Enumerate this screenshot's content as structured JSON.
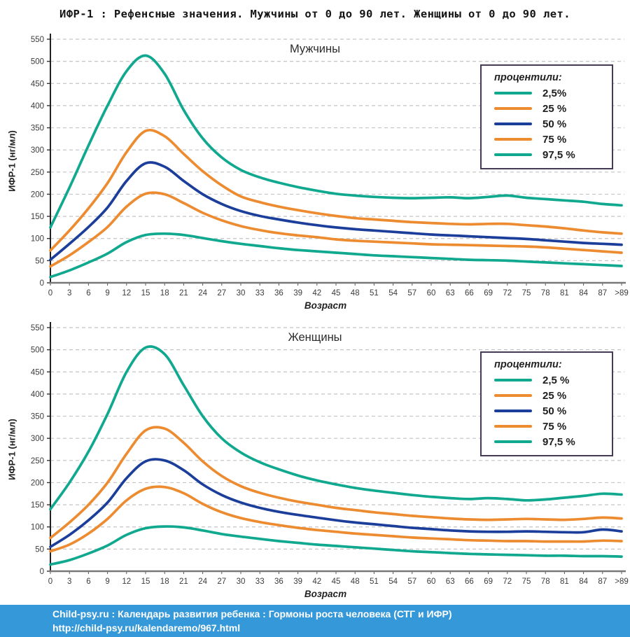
{
  "title": "ИФР-1 : Рефенсные значения. Мужчины от 0 до 90 лет. Женщины от 0 до 90 лет.",
  "footer": {
    "line1": "Child-psy.ru : Календарь развития ребенка : Гормоны роста человека (СТГ и ИФР)",
    "line2": "http://child-psy.ru/kalendaremo/967.html"
  },
  "colors": {
    "teal": "#10a88e",
    "orange": "#ec8b30",
    "blue": "#1c3e9b",
    "legend_border": "#463a54",
    "footer_bg": "#3598d8",
    "gridline": "#c4c4c4"
  },
  "axis": {
    "y_ticks": [
      0,
      50,
      100,
      150,
      200,
      250,
      300,
      350,
      400,
      450,
      500,
      550
    ]
  },
  "chart_data": [
    {
      "type": "line",
      "title": "Мужчины",
      "legend_title": "процентили:",
      "legend_position": "top-right",
      "grid": "horizontal-dashed",
      "xlabel": "Возраст",
      "ylabel": "ИФР-1 (нг/мл)",
      "ylim": [
        0,
        550
      ],
      "x": [
        "0",
        "3",
        "6",
        "9",
        "12",
        "15",
        "18",
        "21",
        "24",
        "27",
        "30",
        "33",
        "36",
        "39",
        "42",
        "45",
        "48",
        "51",
        "54",
        "57",
        "60",
        "63",
        "66",
        "69",
        "72",
        "75",
        "78",
        "81",
        "84",
        "87",
        ">89"
      ],
      "series": [
        {
          "name": "2,5%",
          "color": "#10a88e",
          "values": [
            13,
            28,
            46,
            66,
            92,
            108,
            111,
            108,
            101,
            94,
            88,
            83,
            78,
            74,
            71,
            68,
            65,
            62,
            60,
            58,
            56,
            54,
            52,
            51,
            50,
            48,
            46,
            44,
            42,
            40,
            38
          ]
        },
        {
          "name": "25 %",
          "color": "#ec8b30",
          "values": [
            37,
            62,
            92,
            126,
            172,
            201,
            200,
            180,
            158,
            141,
            128,
            119,
            112,
            107,
            103,
            98,
            95,
            93,
            91,
            89,
            87,
            86,
            85,
            84,
            83,
            82,
            80,
            77,
            74,
            71,
            68
          ]
        },
        {
          "name": "50 %",
          "color": "#1c3e9b",
          "values": [
            52,
            88,
            126,
            170,
            230,
            270,
            262,
            230,
            200,
            178,
            162,
            151,
            143,
            136,
            130,
            125,
            121,
            118,
            115,
            112,
            109,
            107,
            105,
            103,
            101,
            99,
            96,
            93,
            90,
            88,
            86
          ]
        },
        {
          "name": "75 %",
          "color": "#ec8b30",
          "values": [
            73,
            118,
            168,
            225,
            295,
            343,
            331,
            291,
            252,
            220,
            195,
            182,
            172,
            164,
            157,
            151,
            146,
            143,
            140,
            137,
            135,
            133,
            132,
            133,
            133,
            130,
            127,
            123,
            118,
            114,
            111
          ]
        },
        {
          "name": "97,5 %",
          "color": "#10a88e",
          "values": [
            125,
            215,
            310,
            400,
            478,
            513,
            472,
            390,
            326,
            283,
            255,
            238,
            226,
            216,
            208,
            201,
            197,
            194,
            192,
            191,
            192,
            193,
            191,
            194,
            197,
            192,
            189,
            186,
            183,
            178,
            175
          ]
        }
      ]
    },
    {
      "type": "line",
      "title": "Женщины",
      "legend_title": "процентили:",
      "legend_position": "top-right",
      "grid": "horizontal-dashed",
      "xlabel": "Возраст",
      "ylabel": "ИФР-1 (нг/мл)",
      "ylim": [
        0,
        550
      ],
      "x": [
        "0",
        "3",
        "6",
        "9",
        "12",
        "15",
        "18",
        "21",
        "24",
        "27",
        "30",
        "33",
        "36",
        "39",
        "42",
        "45",
        "48",
        "51",
        "54",
        "57",
        "60",
        "63",
        "66",
        "69",
        "72",
        "75",
        "78",
        "81",
        "84",
        "87",
        ">89"
      ],
      "series": [
        {
          "name": "2,5 %",
          "color": "#10a88e",
          "values": [
            15,
            25,
            40,
            58,
            82,
            97,
            101,
            99,
            92,
            84,
            78,
            73,
            68,
            64,
            60,
            57,
            54,
            51,
            48,
            45,
            43,
            41,
            39,
            38,
            37,
            36,
            35,
            35,
            34,
            34,
            33
          ]
        },
        {
          "name": "25 %",
          "color": "#ec8b30",
          "values": [
            45,
            60,
            85,
            118,
            160,
            186,
            190,
            176,
            152,
            133,
            120,
            111,
            104,
            98,
            93,
            89,
            85,
            82,
            79,
            76,
            74,
            72,
            70,
            69,
            68,
            68,
            67,
            67,
            67,
            69,
            68
          ]
        },
        {
          "name": "50 %",
          "color": "#1c3e9b",
          "values": [
            55,
            82,
            115,
            155,
            210,
            248,
            250,
            228,
            196,
            172,
            155,
            143,
            134,
            127,
            121,
            115,
            110,
            106,
            102,
            98,
            95,
            92,
            90,
            89,
            89,
            90,
            89,
            88,
            88,
            94,
            90
          ]
        },
        {
          "name": "75 %",
          "color": "#ec8b30",
          "values": [
            75,
            110,
            150,
            200,
            265,
            318,
            322,
            290,
            248,
            215,
            192,
            177,
            166,
            157,
            150,
            143,
            138,
            133,
            129,
            125,
            122,
            119,
            117,
            116,
            117,
            118,
            117,
            116,
            118,
            121,
            119
          ]
        },
        {
          "name": "97,5 %",
          "color": "#10a88e",
          "values": [
            140,
            200,
            270,
            355,
            450,
            505,
            490,
            420,
            350,
            300,
            268,
            246,
            230,
            216,
            205,
            196,
            188,
            182,
            177,
            172,
            168,
            165,
            163,
            165,
            163,
            160,
            162,
            166,
            170,
            175,
            173
          ]
        }
      ]
    }
  ]
}
